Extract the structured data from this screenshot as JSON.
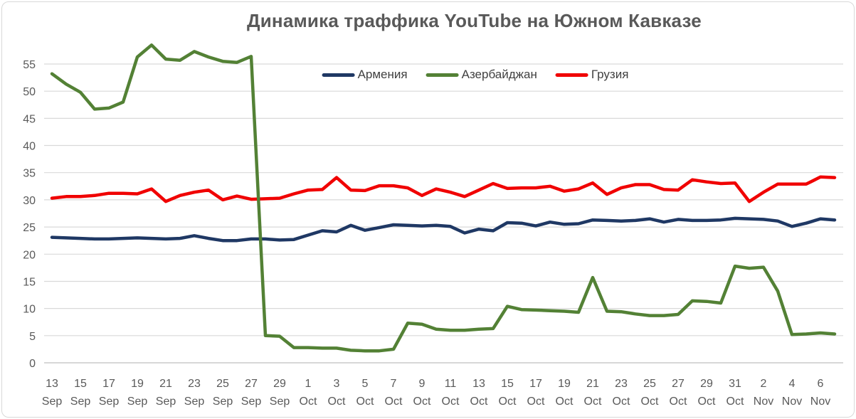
{
  "title": "Динамика траффика YouTube на Южном Кавказе",
  "colors": {
    "title": "#595959",
    "axis_labels": "#595959",
    "gridline": "#D9D9D9",
    "axis_line": "#BFBFBF",
    "border": "#D9D9D9",
    "background": "#FFFFFF",
    "legend_text": "#404040"
  },
  "chart_data": {
    "type": "line",
    "title": "Динамика траффика YouTube на Южном Кавказе",
    "legend_position": "top-center",
    "grid": "horizontal",
    "ylim": [
      0,
      55
    ],
    "y_ticks": [
      0,
      5,
      10,
      15,
      20,
      25,
      30,
      35,
      40,
      45,
      50,
      55
    ],
    "x_tick_step": 2,
    "categories": [
      "13 Sep",
      "14 Sep",
      "15 Sep",
      "16 Sep",
      "17 Sep",
      "18 Sep",
      "19 Sep",
      "20 Sep",
      "21 Sep",
      "22 Sep",
      "23 Sep",
      "24 Sep",
      "25 Sep",
      "26 Sep",
      "27 Sep",
      "28 Sep",
      "29 Sep",
      "30 Sep",
      "1 Oct",
      "2 Oct",
      "3 Oct",
      "4 Oct",
      "5 Oct",
      "6 Oct",
      "7 Oct",
      "8 Oct",
      "9 Oct",
      "10 Oct",
      "11 Oct",
      "12 Oct",
      "13 Oct",
      "14 Oct",
      "15 Oct",
      "16 Oct",
      "17 Oct",
      "18 Oct",
      "19 Oct",
      "20 Oct",
      "21 Oct",
      "22 Oct",
      "23 Oct",
      "24 Oct",
      "25 Oct",
      "26 Oct",
      "27 Oct",
      "28 Oct",
      "29 Oct",
      "30 Oct",
      "31 Oct",
      "1 Nov",
      "2 Nov",
      "3 Nov",
      "4 Nov",
      "5 Nov",
      "6 Nov",
      "7 Nov"
    ],
    "series": [
      {
        "name": "Армения",
        "color": "#1F3864",
        "values": [
          23.1,
          23.0,
          22.9,
          22.8,
          22.8,
          22.9,
          23.0,
          22.9,
          22.8,
          22.9,
          23.4,
          22.9,
          22.5,
          22.5,
          22.8,
          22.8,
          22.6,
          22.7,
          23.5,
          24.3,
          24.1,
          25.3,
          24.4,
          24.9,
          25.4,
          25.3,
          25.2,
          25.3,
          25.1,
          23.9,
          24.6,
          24.3,
          25.8,
          25.7,
          25.2,
          25.9,
          25.5,
          25.6,
          26.3,
          26.2,
          26.1,
          26.2,
          26.5,
          25.9,
          26.4,
          26.2,
          26.2,
          26.3,
          26.6,
          26.5,
          26.4,
          26.1,
          25.1,
          25.7,
          26.5,
          26.3
        ]
      },
      {
        "name": "Азербайджан",
        "color": "#538135",
        "values": [
          53.2,
          51.3,
          49.8,
          46.7,
          46.9,
          48.0,
          56.3,
          58.5,
          55.9,
          55.7,
          57.3,
          56.3,
          55.5,
          55.3,
          56.4,
          5.0,
          4.9,
          2.8,
          2.8,
          2.7,
          2.7,
          2.3,
          2.2,
          2.2,
          2.5,
          7.3,
          7.1,
          6.2,
          6.0,
          6.0,
          6.2,
          6.3,
          10.4,
          9.8,
          9.7,
          9.6,
          9.5,
          9.3,
          15.7,
          9.5,
          9.4,
          9.0,
          8.7,
          8.7,
          8.9,
          11.4,
          11.3,
          11.0,
          17.8,
          17.4,
          17.6,
          13.2,
          5.2,
          5.3,
          5.5,
          5.3
        ]
      },
      {
        "name": "Грузия",
        "color": "#F00000",
        "values": [
          30.3,
          30.6,
          30.6,
          30.8,
          31.2,
          31.2,
          31.1,
          32.0,
          29.7,
          30.8,
          31.4,
          31.8,
          30.0,
          30.7,
          30.1,
          30.2,
          30.3,
          31.1,
          31.8,
          31.9,
          34.1,
          31.8,
          31.7,
          32.6,
          32.6,
          32.2,
          30.8,
          32.0,
          31.4,
          30.6,
          31.8,
          33.0,
          32.1,
          32.2,
          32.2,
          32.5,
          31.6,
          32.0,
          33.1,
          31.0,
          32.2,
          32.8,
          32.8,
          31.9,
          31.8,
          33.7,
          33.3,
          33.0,
          33.1,
          29.7,
          31.4,
          32.9,
          32.9,
          32.9,
          34.2,
          34.1
        ]
      }
    ]
  }
}
